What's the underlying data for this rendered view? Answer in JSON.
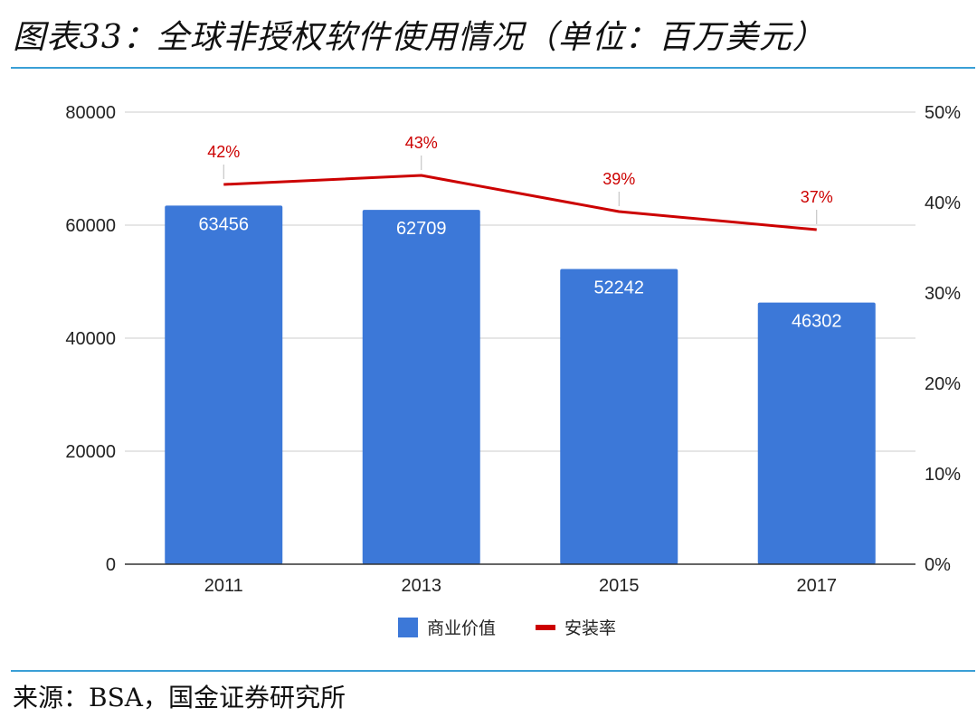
{
  "header": {
    "title": "图表33：全球非授权软件使用情况（单位：百万美元）"
  },
  "footer": {
    "source": "来源：BSA，国金证券研究所"
  },
  "chart_data": {
    "type": "bar",
    "categories": [
      "2011",
      "2013",
      "2015",
      "2017"
    ],
    "series": [
      {
        "name": "商业价值",
        "type": "bar",
        "axis": "left",
        "values": [
          63456,
          62709,
          52242,
          46302
        ],
        "labels": [
          "63456",
          "62709",
          "52242",
          "46302"
        ],
        "color": "#3c78d8"
      },
      {
        "name": "安装率",
        "type": "line",
        "axis": "right",
        "values": [
          42,
          43,
          39,
          37
        ],
        "labels": [
          "42%",
          "43%",
          "39%",
          "37%"
        ],
        "color": "#cc0000"
      }
    ],
    "y_left": {
      "ylim": [
        0,
        80000
      ],
      "ticks": [
        "0",
        "20000",
        "40000",
        "60000",
        "80000"
      ]
    },
    "y_right": {
      "ylim": [
        0,
        50
      ],
      "ticks": [
        "0%",
        "10%",
        "20%",
        "30%",
        "40%",
        "50%"
      ]
    },
    "grid": true,
    "legend_position": "bottom"
  }
}
